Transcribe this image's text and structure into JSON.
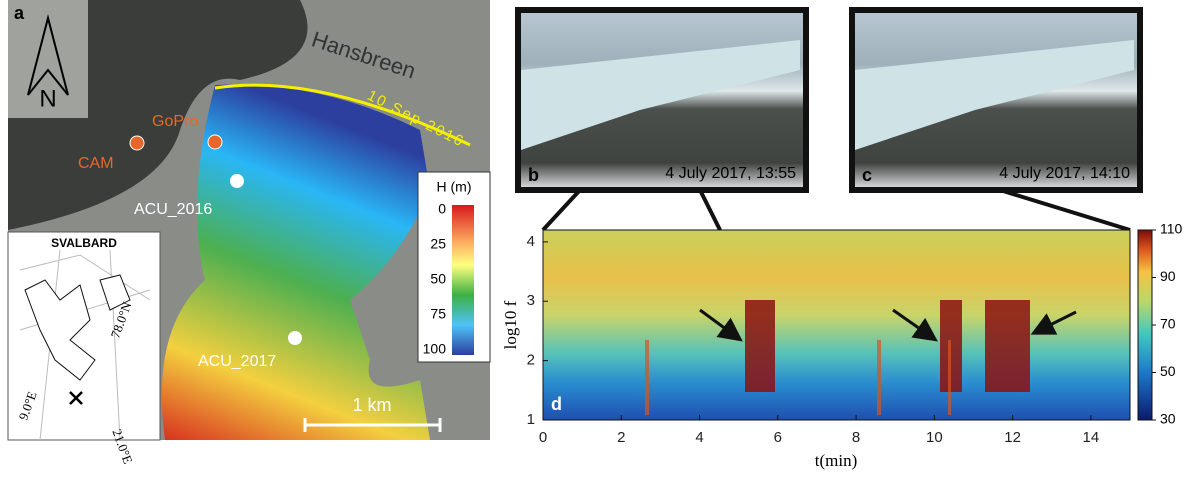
{
  "panel_a": {
    "label": "a",
    "north": "N",
    "glacier": "Hansbreen",
    "front_line": "10 Sep 2016",
    "points": [
      "CAM",
      "GoPro",
      "ACU_2016",
      "ACU_2017"
    ],
    "scale": "1 km",
    "colorbar": {
      "title": "H (m)",
      "ticks": [
        "0",
        "25",
        "50",
        "75",
        "100"
      ]
    },
    "inset": {
      "title": "SVALBARD",
      "lat": "78.0°N",
      "lon_west": "9.0°E",
      "lon_east": "21.0°E"
    }
  },
  "panel_b": {
    "label": "b",
    "caption": "4 July 2017, 13:55"
  },
  "panel_c": {
    "label": "c",
    "caption": "4 July 2017, 14:10"
  },
  "panel_d": {
    "label": "d",
    "ylabel": "log10 f",
    "xlabel": "t(min)",
    "xlim": [
      0,
      15
    ],
    "ylim": [
      1,
      4.2
    ],
    "xticks": [
      0,
      2,
      4,
      6,
      8,
      10,
      12,
      14
    ],
    "yticks": [
      1,
      2,
      3,
      4
    ],
    "clim": [
      30,
      110
    ],
    "cticks": [
      30,
      50,
      70,
      90,
      110
    ]
  }
}
